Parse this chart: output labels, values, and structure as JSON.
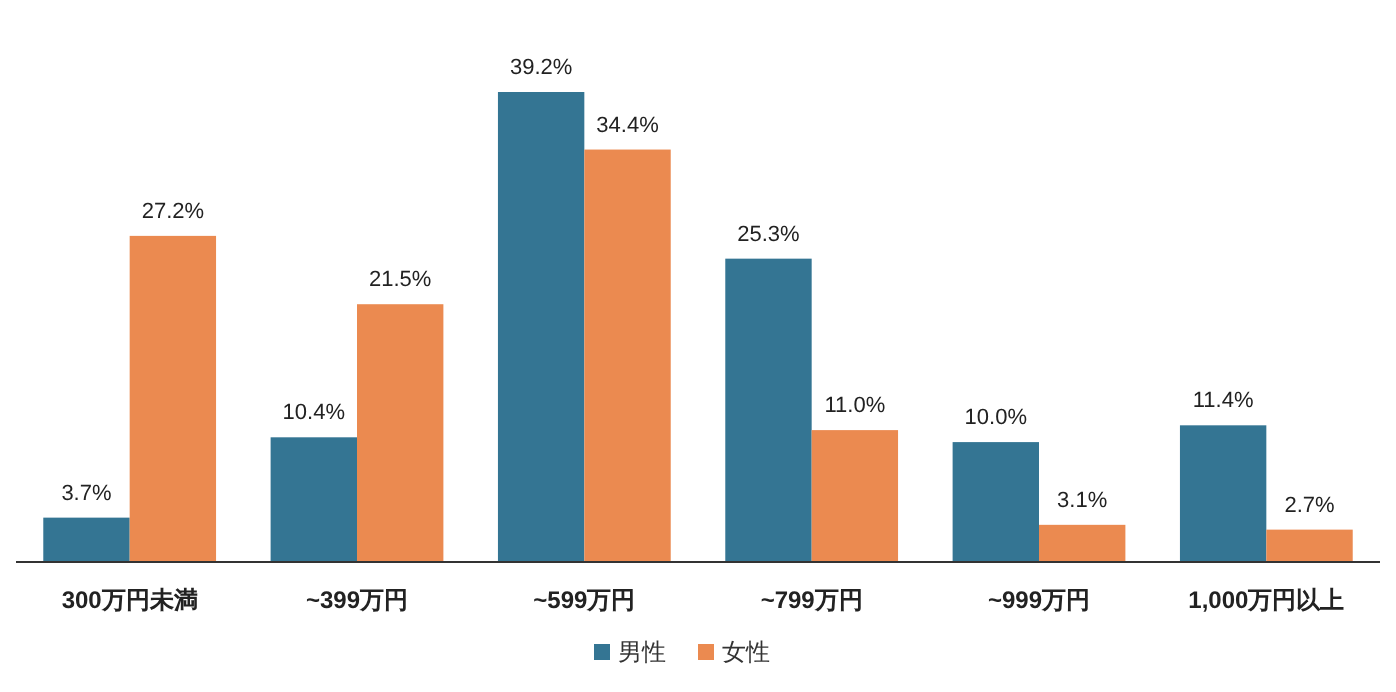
{
  "chart_data": {
    "type": "bar",
    "categories": [
      "300万円未満",
      "~399万円",
      "~599万円",
      "~799万円",
      "~999万円",
      "1,000万円以上"
    ],
    "series": [
      {
        "name": "男性",
        "color": "#347593",
        "values": [
          3.7,
          10.4,
          39.2,
          25.3,
          10.0,
          11.4
        ],
        "value_labels": [
          "3.7%",
          "10.4%",
          "39.2%",
          "25.3%",
          "10.0%",
          "11.4%"
        ]
      },
      {
        "name": "女性",
        "color": "#eb8a50",
        "values": [
          27.2,
          21.5,
          34.4,
          11.0,
          3.1,
          2.7
        ],
        "value_labels": [
          "27.2%",
          "21.5%",
          "34.4%",
          "11.0%",
          "3.1%",
          "2.7%"
        ]
      }
    ],
    "legend": "bottom"
  }
}
